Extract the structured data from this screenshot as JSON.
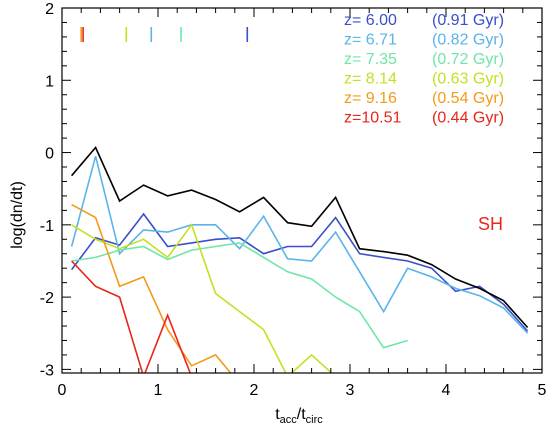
{
  "chart_data": {
    "type": "line",
    "xlabel": "t",
    "xlabel_sub1": "acc",
    "xlabel_sep": "/t",
    "xlabel_sub2": "circ",
    "ylabel": "log(dn/dt)",
    "xlim": [
      0,
      5
    ],
    "ylim": [
      -3.05,
      2
    ],
    "xticks": [
      0,
      1,
      2,
      3,
      4,
      5
    ],
    "yticks": [
      2,
      1,
      0,
      -1,
      -2,
      -3
    ],
    "annotation": {
      "text": "SH",
      "color": "#e8261a"
    },
    "markers": [
      {
        "color": "#e8261a",
        "x": 0.22
      },
      {
        "color": "#f39a1b",
        "x": 0.2
      },
      {
        "color": "#c6e021",
        "x": 0.67
      },
      {
        "color": "#5ab4ea",
        "x": 0.93
      },
      {
        "color": "#6fe6a8",
        "x": 1.24
      },
      {
        "color": "#3a4fc9",
        "x": 1.93
      }
    ],
    "series": [
      {
        "name": "z= 6.00",
        "age": "(0.91 Gyr)",
        "color": "#3a4fc9",
        "x": [
          0.1,
          0.35,
          0.6,
          0.85,
          1.1,
          1.35,
          1.6,
          1.85,
          2.1,
          2.35,
          2.6,
          2.85,
          3.1,
          3.35,
          3.6,
          3.85,
          4.1,
          4.35,
          4.6,
          4.85
        ],
        "y": [
          -1.62,
          -1.18,
          -1.28,
          -0.85,
          -1.3,
          -1.25,
          -1.2,
          -1.18,
          -1.4,
          -1.3,
          -1.3,
          -0.9,
          -1.4,
          -1.45,
          -1.5,
          -1.6,
          -1.92,
          -1.85,
          -2.1,
          -2.47
        ]
      },
      {
        "name": "z= 6.71",
        "age": "(0.82 Gyr)",
        "color": "#5ab4ea",
        "x": [
          0.1,
          0.35,
          0.6,
          0.85,
          1.1,
          1.35,
          1.6,
          1.85,
          2.1,
          2.35,
          2.6,
          2.85,
          3.1,
          3.35,
          3.6,
          3.85,
          4.1,
          4.35,
          4.6,
          4.85
        ],
        "y": [
          -1.3,
          -0.05,
          -1.4,
          -1.07,
          -1.1,
          -1.0,
          -1.0,
          -1.33,
          -0.88,
          -1.47,
          -1.5,
          -1.1,
          -1.65,
          -2.2,
          -1.6,
          -1.72,
          -1.88,
          -1.98,
          -2.15,
          -2.5
        ]
      },
      {
        "name": "z= 7.35",
        "age": "(0.72 Gyr)",
        "color": "#6fe6a8",
        "x": [
          0.1,
          0.35,
          0.6,
          0.85,
          1.1,
          1.35,
          1.6,
          1.85,
          2.1,
          2.35,
          2.6,
          2.85,
          3.1,
          3.35,
          3.6
        ],
        "y": [
          -1.5,
          -1.45,
          -1.35,
          -1.3,
          -1.48,
          -1.35,
          -1.3,
          -1.25,
          -1.45,
          -1.65,
          -1.75,
          -2.0,
          -2.2,
          -2.7,
          -2.6
        ]
      },
      {
        "name": "z= 8.14",
        "age": "(0.63 Gyr)",
        "color": "#c6e021",
        "x": [
          0.1,
          0.35,
          0.6,
          0.85,
          1.1,
          1.35,
          1.6,
          1.85,
          2.1,
          2.35,
          2.6,
          2.85
        ],
        "y": [
          -1.0,
          -1.2,
          -1.33,
          -1.2,
          -1.45,
          -1.0,
          -1.95,
          -2.2,
          -2.45,
          -3.1,
          -2.8,
          -3.1
        ]
      },
      {
        "name": "z= 9.16",
        "age": "(0.54 Gyr)",
        "color": "#f39a1b",
        "x": [
          0.1,
          0.35,
          0.6,
          0.85,
          1.1,
          1.35,
          1.6,
          1.85
        ],
        "y": [
          -0.72,
          -0.9,
          -1.85,
          -1.72,
          -2.45,
          -2.95,
          -2.8,
          -3.2
        ]
      },
      {
        "name": "z=10.51",
        "age": "(0.44 Gyr)",
        "color": "#e8261a",
        "x": [
          0.1,
          0.35,
          0.6,
          0.85,
          1.1,
          1.35
        ],
        "y": [
          -1.5,
          -1.85,
          -2.0,
          -3.1,
          -2.25,
          -3.1
        ]
      },
      {
        "name": "",
        "age": "",
        "color": "#000000",
        "x": [
          0.1,
          0.35,
          0.6,
          0.85,
          1.1,
          1.35,
          1.6,
          1.85,
          2.1,
          2.35,
          2.6,
          2.85,
          3.1,
          3.35,
          3.6,
          3.85,
          4.1,
          4.35,
          4.6,
          4.85
        ],
        "y": [
          -0.32,
          0.07,
          -0.67,
          -0.45,
          -0.6,
          -0.52,
          -0.65,
          -0.82,
          -0.62,
          -0.97,
          -1.02,
          -0.62,
          -1.33,
          -1.37,
          -1.42,
          -1.55,
          -1.75,
          -1.88,
          -2.05,
          -2.42
        ]
      }
    ]
  }
}
